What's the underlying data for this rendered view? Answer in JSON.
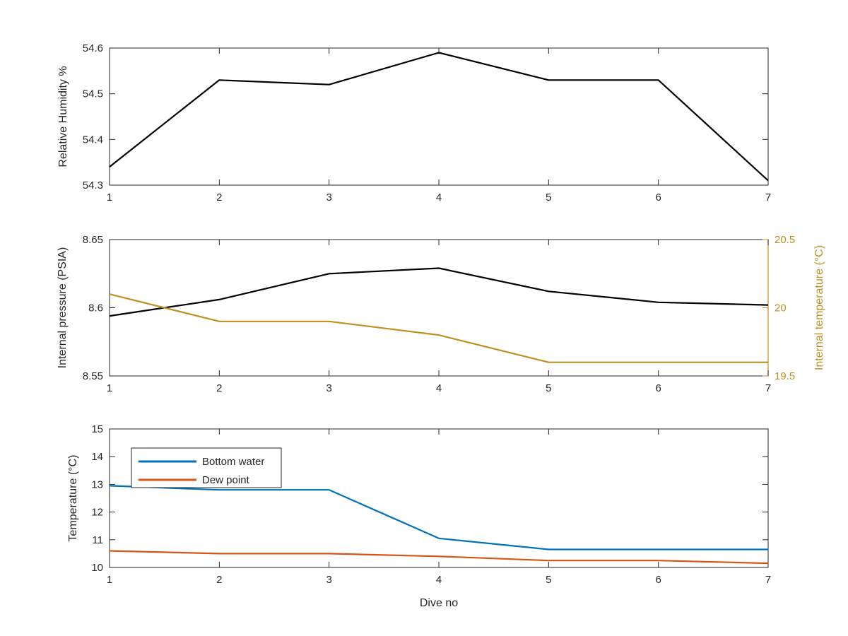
{
  "colors": {
    "black": "#000000",
    "axis": "#262626",
    "tick_text": "#262626",
    "gold": "#c09020",
    "blue": "#0072bd",
    "orange": "#d95319"
  },
  "chart_data": [
    {
      "type": "line",
      "x": [
        1,
        2,
        3,
        4,
        5,
        6,
        7
      ],
      "xlim": [
        1,
        7
      ],
      "xticks": [
        "1",
        "2",
        "3",
        "4",
        "5",
        "6",
        "7"
      ],
      "ylabel": "Relative Humidity %",
      "ylim": [
        54.3,
        54.6
      ],
      "yticks": [
        "54.3",
        "54.4",
        "54.5",
        "54.6"
      ],
      "grid": false,
      "series": [
        {
          "values": [
            54.34,
            54.53,
            54.52,
            54.59,
            54.53,
            54.53,
            54.31
          ],
          "color": "#000000"
        }
      ]
    },
    {
      "type": "line",
      "x": [
        1,
        2,
        3,
        4,
        5,
        6,
        7
      ],
      "xlim": [
        1,
        7
      ],
      "xticks": [
        "1",
        "2",
        "3",
        "4",
        "5",
        "6",
        "7"
      ],
      "ylabel": "Internal pressure (PSIA)",
      "ylim": [
        8.55,
        8.65
      ],
      "yticks": [
        "8.55",
        "8.6",
        "8.65"
      ],
      "ylabel_right": "Internal temperature (°C)",
      "ylim_right": [
        19.5,
        20.5
      ],
      "yticks_right": [
        "19.5",
        "20",
        "20.5"
      ],
      "grid": false,
      "series": [
        {
          "axis": "left",
          "values": [
            8.594,
            8.606,
            8.625,
            8.629,
            8.612,
            8.604,
            8.602
          ],
          "color": "#000000"
        },
        {
          "axis": "right",
          "values": [
            20.1,
            19.9,
            19.9,
            19.8,
            19.6,
            19.6,
            19.6
          ],
          "color": "#c09020"
        }
      ]
    },
    {
      "type": "line",
      "x": [
        1,
        2,
        3,
        4,
        5,
        6,
        7
      ],
      "xlim": [
        1,
        7
      ],
      "xticks": [
        "1",
        "2",
        "3",
        "4",
        "5",
        "6",
        "7"
      ],
      "xlabel": "Dive no",
      "ylabel": "Temperature (°C)",
      "ylim": [
        10,
        15
      ],
      "yticks": [
        "10",
        "11",
        "12",
        "13",
        "14",
        "15"
      ],
      "grid": false,
      "legend": "top-left",
      "series": [
        {
          "name": "Bottom water",
          "values": [
            12.95,
            12.8,
            12.8,
            11.05,
            10.65,
            10.65,
            10.65
          ],
          "color": "#0072bd"
        },
        {
          "name": "Dew point",
          "values": [
            10.6,
            10.5,
            10.5,
            10.4,
            10.25,
            10.25,
            10.15
          ],
          "color": "#d95319"
        }
      ]
    }
  ]
}
